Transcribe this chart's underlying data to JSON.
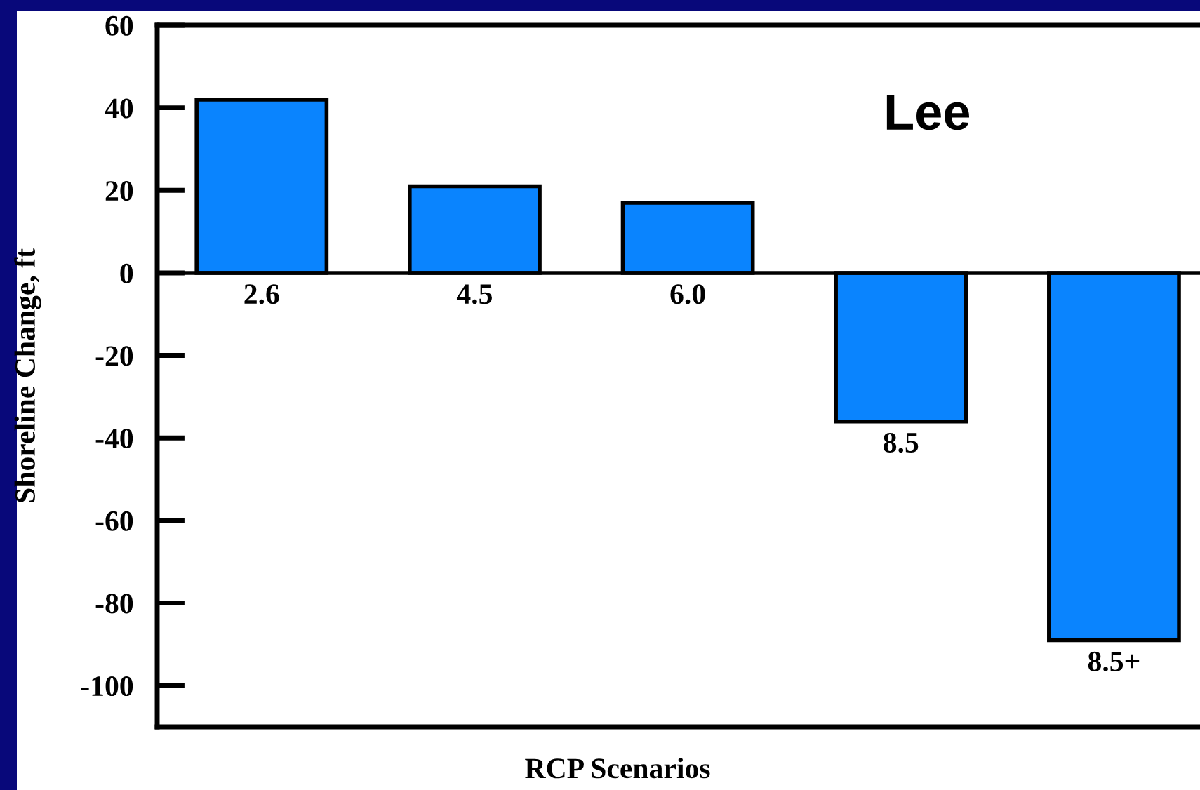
{
  "chart_data": {
    "type": "bar",
    "title": "Lee",
    "xlabel": "RCP Scenarios",
    "ylabel": "Shoreline Change, ft",
    "categories": [
      "2.6",
      "4.5",
      "6.0",
      "8.5",
      "8.5+"
    ],
    "values": [
      42,
      21,
      17,
      -36,
      -89
    ],
    "color": "#0a84fe",
    "ylim": [
      -110,
      60
    ],
    "yticks": [
      -100,
      -80,
      -60,
      -40,
      -20,
      0,
      20,
      40,
      60
    ],
    "grid": false,
    "legend": false
  }
}
